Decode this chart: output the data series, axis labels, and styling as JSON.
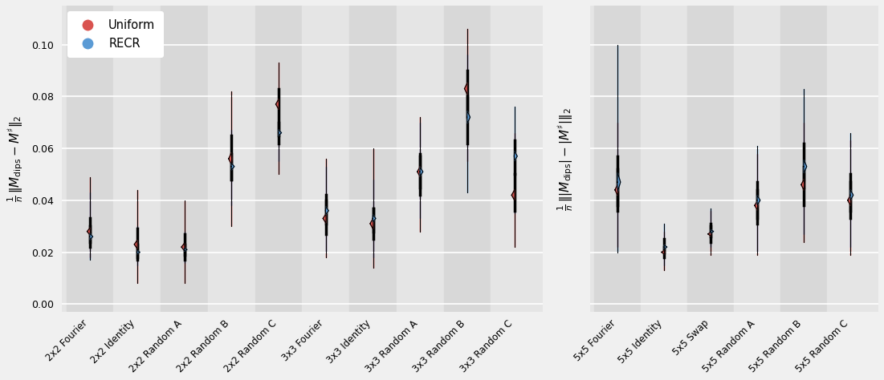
{
  "left_categories": [
    "2x2 Fourier",
    "2x2 Identity",
    "2x2 Random A",
    "2x2 Random B",
    "2x2 Random C",
    "3x3 Fourier",
    "3x3 Identity",
    "3x3 Random A",
    "3x3 Random B",
    "3x3 Random C"
  ],
  "right_categories": [
    "5x5 Fourier",
    "5x5 Identity",
    "5x5 Swap",
    "5x5 Random A",
    "5x5 Random B",
    "5x5 Random C"
  ],
  "left_ylabel": "$\\frac{1}{n}\\,\\|M_\\mathrm{dips} - M^\\sharp\\|_2$",
  "right_ylabel": "$\\frac{1}{n}\\,\\||M_\\mathrm{dips}| - |M^\\sharp|\\|_2$",
  "color_uniform": "#d9534f",
  "color_recr": "#5b9bd5",
  "background_color": "#e5e5e5",
  "alt_background_color": "#d8d8d8",
  "left_ylim": [
    -0.003,
    0.115
  ],
  "right_ylim": [
    -0.003,
    0.115
  ],
  "left_yticks": [
    0.0,
    0.02,
    0.04,
    0.06,
    0.08,
    0.1
  ],
  "left_data_uniform": {
    "2x2 Fourier": [
      0.028,
      0.024,
      0.033,
      0.018,
      0.049
    ],
    "2x2 Identity": [
      0.023,
      0.017,
      0.029,
      0.008,
      0.044
    ],
    "2x2 Random A": [
      0.022,
      0.017,
      0.027,
      0.008,
      0.04
    ],
    "2x2 Random B": [
      0.056,
      0.048,
      0.065,
      0.03,
      0.082
    ],
    "2x2 Random C": [
      0.077,
      0.065,
      0.083,
      0.05,
      0.093
    ],
    "3x3 Fourier": [
      0.033,
      0.027,
      0.04,
      0.018,
      0.056
    ],
    "3x3 Identity": [
      0.031,
      0.025,
      0.037,
      0.014,
      0.06
    ],
    "3x3 Random A": [
      0.051,
      0.042,
      0.058,
      0.028,
      0.072
    ],
    "3x3 Random B": [
      0.083,
      0.072,
      0.09,
      0.055,
      0.106
    ],
    "3x3 Random C": [
      0.042,
      0.036,
      0.05,
      0.022,
      0.066
    ]
  },
  "left_data_recr": {
    "2x2 Fourier": [
      0.026,
      0.022,
      0.03,
      0.017,
      0.043
    ],
    "2x2 Identity": [
      0.02,
      0.018,
      0.023,
      0.015,
      0.03
    ],
    "2x2 Random A": [
      0.021,
      0.019,
      0.023,
      0.016,
      0.028
    ],
    "2x2 Random B": [
      0.053,
      0.048,
      0.058,
      0.038,
      0.067
    ],
    "2x2 Random C": [
      0.066,
      0.062,
      0.07,
      0.055,
      0.08
    ],
    "3x3 Fourier": [
      0.036,
      0.031,
      0.042,
      0.02,
      0.053
    ],
    "3x3 Identity": [
      0.033,
      0.028,
      0.037,
      0.018,
      0.048
    ],
    "3x3 Random A": [
      0.051,
      0.045,
      0.057,
      0.033,
      0.07
    ],
    "3x3 Random B": [
      0.072,
      0.062,
      0.08,
      0.043,
      0.096
    ],
    "3x3 Random C": [
      0.057,
      0.05,
      0.063,
      0.035,
      0.076
    ]
  },
  "right_data_uniform": {
    "5x5 Fourier": [
      0.044,
      0.036,
      0.052,
      0.022,
      0.07
    ],
    "5x5 Identity": [
      0.02,
      0.018,
      0.022,
      0.013,
      0.028
    ],
    "5x5 Swap": [
      0.027,
      0.024,
      0.03,
      0.019,
      0.036
    ],
    "5x5 Random A": [
      0.038,
      0.031,
      0.044,
      0.019,
      0.058
    ],
    "5x5 Random B": [
      0.046,
      0.038,
      0.053,
      0.024,
      0.07
    ],
    "5x5 Random C": [
      0.04,
      0.033,
      0.047,
      0.019,
      0.063
    ]
  },
  "right_data_recr": {
    "5x5 Fourier": [
      0.047,
      0.038,
      0.057,
      0.02,
      0.1
    ],
    "5x5 Identity": [
      0.022,
      0.02,
      0.025,
      0.015,
      0.031
    ],
    "5x5 Swap": [
      0.028,
      0.026,
      0.031,
      0.022,
      0.037
    ],
    "5x5 Random A": [
      0.04,
      0.033,
      0.047,
      0.02,
      0.061
    ],
    "5x5 Random B": [
      0.053,
      0.045,
      0.062,
      0.027,
      0.083
    ],
    "5x5 Random C": [
      0.042,
      0.036,
      0.05,
      0.022,
      0.066
    ]
  }
}
